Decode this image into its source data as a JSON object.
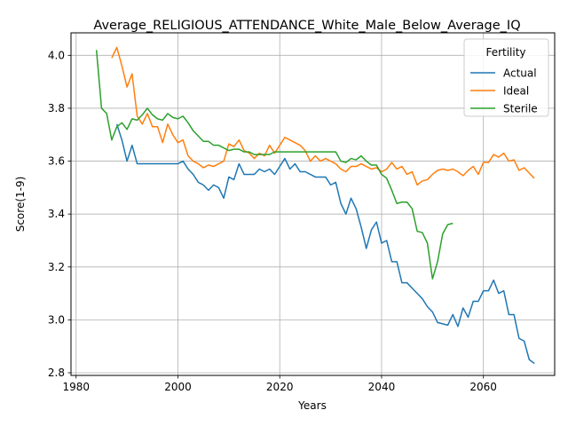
{
  "chart_data": {
    "type": "line",
    "title": "Average_RELIGIOUS_ATTENDANCE_White_Male_Below_Average_IQ",
    "xlabel": "Years",
    "ylabel": "Score(1-9)",
    "xlim": [
      1979,
      2074
    ],
    "ylim": [
      2.79,
      4.085
    ],
    "xticks": [
      1980,
      2000,
      2020,
      2040,
      2060
    ],
    "yticks": [
      2.8,
      3.0,
      3.2,
      3.4,
      3.6,
      3.8,
      4.0
    ],
    "ytick_labels": [
      "2.8",
      "3.0",
      "3.2",
      "3.4",
      "3.6",
      "3.8",
      "4.0"
    ],
    "grid": true,
    "legend": {
      "title": "Fertility",
      "position": "top-right"
    },
    "series": [
      {
        "name": "Actual",
        "color": "#1f77b4",
        "x": [
          1988,
          1989,
          1990,
          1991,
          1992,
          1993,
          1994,
          1995,
          1996,
          1997,
          1998,
          1999,
          2000,
          2001,
          2002,
          2003,
          2004,
          2005,
          2006,
          2007,
          2008,
          2009,
          2010,
          2011,
          2012,
          2013,
          2014,
          2015,
          2016,
          2017,
          2018,
          2019,
          2020,
          2021,
          2022,
          2023,
          2024,
          2025,
          2026,
          2027,
          2028,
          2029,
          2030,
          2031,
          2032,
          2033,
          2034,
          2035,
          2036,
          2037,
          2038,
          2039,
          2040,
          2041,
          2042,
          2043,
          2044,
          2045,
          2046,
          2047,
          2048,
          2049,
          2050,
          2051,
          2052,
          2053,
          2054,
          2055,
          2056,
          2057,
          2058,
          2059,
          2060,
          2061,
          2062,
          2063,
          2064,
          2065,
          2066,
          2067,
          2068,
          2069,
          2070
        ],
        "values": [
          3.74,
          3.68,
          3.6,
          3.66,
          3.59,
          3.59,
          3.59,
          3.59,
          3.59,
          3.59,
          3.59,
          3.59,
          3.59,
          3.6,
          3.57,
          3.55,
          3.52,
          3.51,
          3.49,
          3.51,
          3.5,
          3.46,
          3.54,
          3.53,
          3.59,
          3.55,
          3.55,
          3.55,
          3.57,
          3.56,
          3.57,
          3.55,
          3.58,
          3.61,
          3.57,
          3.59,
          3.56,
          3.56,
          3.55,
          3.54,
          3.54,
          3.54,
          3.51,
          3.52,
          3.44,
          3.4,
          3.46,
          3.42,
          3.35,
          3.27,
          3.34,
          3.37,
          3.29,
          3.3,
          3.22,
          3.22,
          3.14,
          3.14,
          3.12,
          3.1,
          3.08,
          3.05,
          3.03,
          2.99,
          2.985,
          2.98,
          3.02,
          2.975,
          3.045,
          3.01,
          3.07,
          3.07,
          3.11,
          3.11,
          3.15,
          3.1,
          3.11,
          3.02,
          3.02,
          2.93,
          2.92,
          2.85,
          2.835
        ]
      },
      {
        "name": "Ideal",
        "color": "#ff7f0e",
        "x": [
          1987,
          1988,
          1989,
          1990,
          1991,
          1992,
          1993,
          1994,
          1995,
          1996,
          1997,
          1998,
          1999,
          2000,
          2001,
          2002,
          2003,
          2004,
          2005,
          2006,
          2007,
          2008,
          2009,
          2010,
          2011,
          2012,
          2013,
          2014,
          2015,
          2016,
          2017,
          2018,
          2019,
          2020,
          2021,
          2022,
          2023,
          2024,
          2025,
          2026,
          2027,
          2028,
          2029,
          2030,
          2031,
          2032,
          2033,
          2034,
          2035,
          2036,
          2037,
          2038,
          2039,
          2040,
          2041,
          2042,
          2043,
          2044,
          2045,
          2046,
          2047,
          2048,
          2049,
          2050,
          2051,
          2052,
          2053,
          2054,
          2055,
          2056,
          2057,
          2058,
          2059,
          2060,
          2061,
          2062,
          2063,
          2064,
          2065,
          2066,
          2067,
          2068,
          2069,
          2070
        ],
        "values": [
          3.99,
          4.03,
          3.96,
          3.88,
          3.93,
          3.77,
          3.74,
          3.78,
          3.73,
          3.73,
          3.67,
          3.74,
          3.7,
          3.67,
          3.68,
          3.62,
          3.6,
          3.59,
          3.575,
          3.585,
          3.58,
          3.59,
          3.6,
          3.665,
          3.655,
          3.68,
          3.64,
          3.63,
          3.61,
          3.63,
          3.62,
          3.66,
          3.63,
          3.66,
          3.69,
          3.68,
          3.67,
          3.66,
          3.64,
          3.6,
          3.62,
          3.6,
          3.61,
          3.6,
          3.59,
          3.57,
          3.56,
          3.58,
          3.58,
          3.59,
          3.58,
          3.57,
          3.575,
          3.56,
          3.57,
          3.595,
          3.57,
          3.58,
          3.55,
          3.56,
          3.51,
          3.525,
          3.53,
          3.55,
          3.565,
          3.57,
          3.565,
          3.57,
          3.56,
          3.545,
          3.565,
          3.58,
          3.55,
          3.595,
          3.595,
          3.625,
          3.615,
          3.63,
          3.6,
          3.605,
          3.565,
          3.575,
          3.555,
          3.535
        ]
      },
      {
        "name": "Sterile",
        "color": "#2ca02c",
        "x": [
          1984,
          1985,
          1986,
          1987,
          1988,
          1989,
          1990,
          1991,
          1992,
          1993,
          1994,
          1995,
          1996,
          1997,
          1998,
          1999,
          2000,
          2001,
          2002,
          2003,
          2004,
          2005,
          2006,
          2007,
          2008,
          2009,
          2010,
          2011,
          2012,
          2013,
          2014,
          2015,
          2016,
          2017,
          2018,
          2019,
          2020,
          2021,
          2022,
          2023,
          2024,
          2025,
          2026,
          2027,
          2028,
          2029,
          2030,
          2031,
          2032,
          2033,
          2034,
          2035,
          2036,
          2037,
          2038,
          2039,
          2040,
          2041,
          2042,
          2043,
          2044,
          2045,
          2046,
          2047,
          2048,
          2049,
          2050,
          2051,
          2052,
          2053,
          2054
        ],
        "values": [
          4.02,
          3.8,
          3.78,
          3.68,
          3.73,
          3.745,
          3.72,
          3.76,
          3.755,
          3.775,
          3.8,
          3.775,
          3.76,
          3.755,
          3.78,
          3.765,
          3.76,
          3.77,
          3.745,
          3.715,
          3.695,
          3.675,
          3.675,
          3.66,
          3.66,
          3.65,
          3.64,
          3.645,
          3.645,
          3.635,
          3.635,
          3.625,
          3.625,
          3.625,
          3.625,
          3.635,
          3.635,
          3.635,
          3.635,
          3.635,
          3.635,
          3.635,
          3.635,
          3.635,
          3.635,
          3.635,
          3.635,
          3.635,
          3.6,
          3.595,
          3.61,
          3.605,
          3.62,
          3.6,
          3.585,
          3.585,
          3.55,
          3.535,
          3.49,
          3.44,
          3.445,
          3.445,
          3.42,
          3.335,
          3.33,
          3.29,
          3.155,
          3.22,
          3.325,
          3.36,
          3.365
        ]
      }
    ]
  }
}
